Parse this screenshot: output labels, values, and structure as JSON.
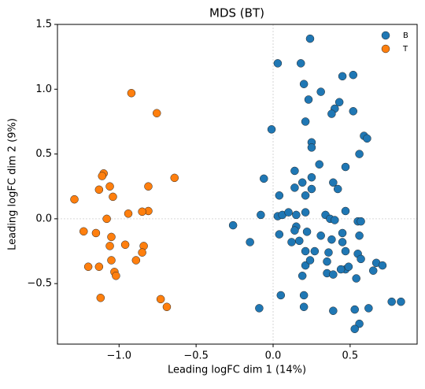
{
  "chart_data": {
    "type": "scatter",
    "title": "MDS (BT)",
    "x_label": "Leading logFC dim 1 (14%)",
    "y_label": "Leading logFC dim 2 (9%)",
    "xlim": [
      -1.4,
      0.935
    ],
    "ylim": [
      -0.967,
      1.5
    ],
    "xticks": [
      {
        "value": -1.0,
        "label": "−1.0"
      },
      {
        "value": -0.5,
        "label": "−0.5"
      },
      {
        "value": 0,
        "label": "0.0"
      },
      0.5
    ],
    "yticks": [
      {
        "value": -0.5,
        "label": "−0.5"
      },
      {
        "value": 0,
        "label": "0.0"
      },
      0.5,
      {
        "value": 1.0,
        "label": "1.0"
      },
      1.5
    ],
    "zero_lines": true,
    "legend": "upper right",
    "series": [
      {
        "name": "B",
        "color": "#1f77b4",
        "x": [
          0.24,
          0.03,
          0.18,
          0.2,
          0.52,
          0.45,
          0.23,
          0.31,
          0.43,
          0.4,
          0.38,
          0.52,
          0.21,
          -0.01,
          0.59,
          0.61,
          0.25,
          0.25,
          0.47,
          0.56,
          0.3,
          0.14,
          0.39,
          -0.06,
          0.25,
          0.42,
          0.19,
          0.14,
          0.25,
          0.04,
          0.21,
          -0.08,
          0.03,
          0.06,
          0.1,
          0.15,
          0.21,
          0.34,
          0.37,
          0.47,
          0.4,
          0.55,
          0.57,
          -0.26,
          0.15,
          0.14,
          0.22,
          0.31,
          0.45,
          0.04,
          0.12,
          -0.15,
          0.17,
          0.38,
          0.45,
          0.56,
          0.21,
          0.36,
          0.47,
          0.35,
          0.55,
          0.57,
          0.47,
          0.44,
          0.21,
          0.49,
          0.35,
          0.19,
          0.54,
          0.67,
          0.71,
          0.65,
          0.39,
          0.05,
          -0.09,
          0.2,
          0.39,
          0.53,
          0.62,
          0.56,
          0.53,
          0.77,
          0.83,
          0.2,
          0.24,
          0.27
        ],
        "y": [
          1.39,
          1.2,
          1.2,
          1.04,
          1.11,
          1.1,
          0.92,
          0.98,
          0.9,
          0.85,
          0.81,
          0.83,
          0.75,
          0.69,
          0.64,
          0.62,
          0.59,
          0.55,
          0.4,
          0.5,
          0.42,
          0.37,
          0.28,
          0.31,
          0.32,
          0.23,
          0.28,
          0.24,
          0.23,
          0.18,
          0.18,
          0.03,
          0.02,
          0.03,
          0.05,
          0.03,
          0.05,
          0.03,
          0.0,
          0.06,
          -0.01,
          -0.02,
          -0.02,
          -0.05,
          -0.06,
          -0.09,
          -0.1,
          -0.13,
          -0.11,
          -0.12,
          -0.18,
          -0.18,
          -0.17,
          -0.16,
          -0.18,
          -0.13,
          -0.25,
          -0.26,
          -0.25,
          -0.33,
          -0.27,
          -0.31,
          -0.39,
          -0.39,
          -0.36,
          -0.37,
          -0.42,
          -0.44,
          -0.46,
          -0.34,
          -0.36,
          -0.4,
          -0.43,
          -0.59,
          -0.69,
          -0.59,
          -0.71,
          -0.7,
          -0.69,
          -0.81,
          -0.85,
          -0.64,
          -0.64,
          -0.68,
          -0.32,
          -0.25
        ]
      },
      {
        "name": "T",
        "color": "#ff7f0e",
        "x": [
          -0.92,
          -0.755,
          -0.64,
          -1.1,
          -1.11,
          -1.29,
          -1.13,
          -1.06,
          -1.04,
          -0.81,
          -0.94,
          -1.08,
          -0.81,
          -0.85,
          -1.23,
          -1.15,
          -1.05,
          -0.96,
          -0.84,
          -1.06,
          -0.85,
          -1.05,
          -1.2,
          -1.13,
          -0.89,
          -1.03,
          -1.02,
          -1.12,
          -0.73,
          -0.69
        ],
        "y": [
          0.97,
          0.815,
          0.316,
          0.35,
          0.33,
          0.15,
          0.225,
          0.25,
          0.17,
          0.25,
          0.04,
          0.0,
          0.06,
          0.055,
          -0.097,
          -0.11,
          -0.14,
          -0.2,
          -0.21,
          -0.21,
          -0.26,
          -0.32,
          -0.37,
          -0.37,
          -0.32,
          -0.41,
          -0.44,
          -0.61,
          -0.62,
          -0.68
        ]
      }
    ]
  }
}
